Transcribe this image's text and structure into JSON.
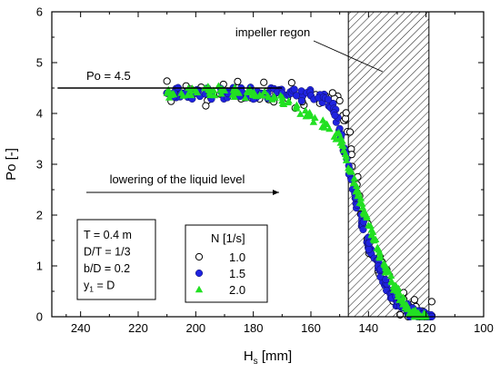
{
  "chart_data": {
    "type": "scatter",
    "xlabel": "H",
    "xlabel_sub": "s",
    "xlabel_unit": " [mm]",
    "ylabel": "Po [-]",
    "xlim": [
      250,
      100
    ],
    "ylim": [
      0,
      6
    ],
    "xticks": [
      240,
      220,
      200,
      180,
      160,
      140,
      120,
      100
    ],
    "yticks": [
      0,
      1,
      2,
      3,
      4,
      5,
      6
    ],
    "x_reversed": true,
    "grid": false,
    "series": [
      {
        "name": "1.0",
        "marker": "open-circle",
        "color": "#000000",
        "x": [
          210,
          205,
          200,
          195,
          190,
          185,
          180,
          175,
          170,
          165,
          160,
          155,
          150,
          148,
          146,
          144,
          142,
          140,
          138,
          136,
          134,
          132,
          130,
          128,
          126,
          124,
          122,
          120,
          118
        ],
        "y": [
          4.4,
          4.4,
          4.4,
          4.4,
          4.4,
          4.4,
          4.4,
          4.4,
          4.4,
          4.35,
          4.35,
          4.35,
          4.25,
          3.9,
          3.3,
          2.6,
          2.0,
          1.55,
          1.25,
          0.95,
          0.7,
          0.5,
          0.35,
          0.25,
          0.15,
          0.08,
          0.05,
          0.03,
          0.02
        ]
      },
      {
        "name": "1.5",
        "marker": "filled-circle",
        "color": "#1f23e0",
        "x": [
          210,
          205,
          200,
          195,
          190,
          185,
          180,
          175,
          170,
          165,
          160,
          155,
          152,
          150,
          148,
          146,
          144,
          142,
          140,
          138,
          136,
          134,
          132,
          130,
          128,
          126,
          124,
          122,
          120,
          118
        ],
        "y": [
          4.4,
          4.4,
          4.4,
          4.4,
          4.4,
          4.4,
          4.4,
          4.4,
          4.4,
          4.35,
          4.35,
          4.3,
          4.1,
          3.7,
          3.2,
          2.7,
          2.2,
          1.8,
          1.45,
          1.15,
          0.9,
          0.65,
          0.45,
          0.3,
          0.2,
          0.12,
          0.07,
          0.04,
          0.02,
          0.0
        ]
      },
      {
        "name": "2.0",
        "marker": "filled-triangle",
        "color": "#22e022",
        "x": [
          210,
          205,
          200,
          195,
          190,
          185,
          180,
          175,
          170,
          165,
          160,
          155,
          150,
          148,
          146,
          144,
          142,
          140,
          138,
          136,
          134,
          132,
          130,
          128,
          126,
          124,
          122,
          120
        ],
        "y": [
          4.4,
          4.4,
          4.45,
          4.45,
          4.45,
          4.4,
          4.4,
          4.35,
          4.25,
          4.1,
          3.95,
          3.8,
          3.5,
          3.2,
          2.85,
          2.5,
          2.15,
          1.8,
          1.5,
          1.2,
          0.95,
          0.7,
          0.5,
          0.3,
          0.15,
          0.05,
          0.02,
          0.0
        ]
      }
    ],
    "legend": {
      "title": "N [1/s]",
      "placement": "bottom-center"
    },
    "reference_line": {
      "label": "Po = 4.5",
      "y": 4.5,
      "x_from": 248,
      "x_to": 170
    },
    "shaded_region": {
      "label": "impeller regon",
      "x_from": 147,
      "x_to": 119,
      "pattern": "diagonal-hatch"
    },
    "annotations": {
      "arrow_label": "lowering of the liquid level",
      "params": [
        "T = 0.4 m",
        "D/T = 1/3",
        "b/D = 0.2",
        "y"
      ],
      "param_sub": "1",
      "param_tail": " = D"
    }
  }
}
